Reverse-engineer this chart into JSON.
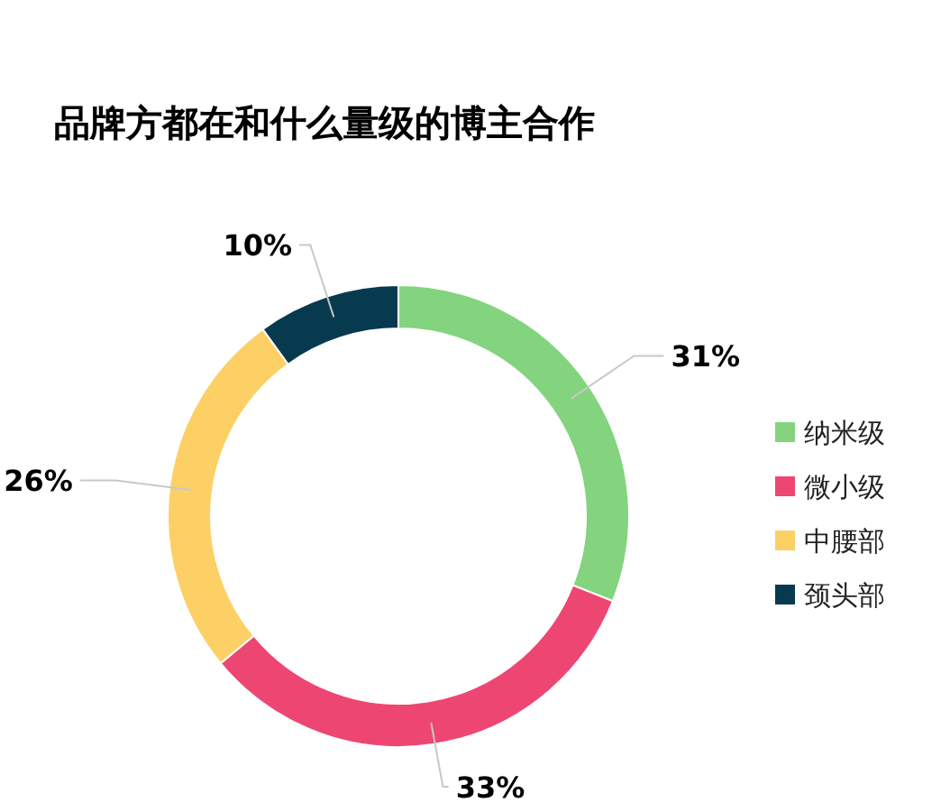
{
  "chart_data": {
    "type": "donut",
    "title": "品牌方都在和什么量级的博主合作",
    "categories": [
      "纳米级",
      "微小级",
      "中腰部",
      "颈头部"
    ],
    "values": [
      31,
      33,
      26,
      10
    ],
    "colors": [
      "#84d47f",
      "#ee4672",
      "#fdd066",
      "#073a4e"
    ],
    "value_labels": [
      "31%",
      "33%",
      "26%",
      "10%"
    ],
    "legend": "right"
  }
}
